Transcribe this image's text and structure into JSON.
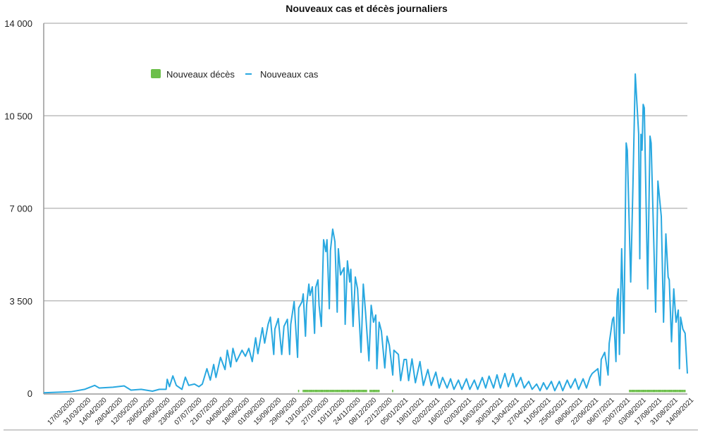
{
  "chart_data": {
    "type": "line",
    "title": "Nouveaux cas et décès journaliers",
    "xlabel": "",
    "ylabel": "",
    "x_unit": "days since 17/03/2020",
    "xlim": [
      -24,
      544
    ],
    "ylim": [
      0,
      14000
    ],
    "grid": true,
    "legend_position": "top-left",
    "yticks": [
      {
        "value": 0,
        "label": "0"
      },
      {
        "value": 3500,
        "label": "3 500"
      },
      {
        "value": 7000,
        "label": "7 000"
      },
      {
        "value": 10500,
        "label": "10 500"
      },
      {
        "value": 14000,
        "label": "14 000"
      }
    ],
    "xtick_step_days": 14,
    "xtick_labels": [
      "17/03/2020",
      "31/03/2020",
      "14/04/2020",
      "28/04/2020",
      "12/05/2020",
      "26/05/2020",
      "09/06/2020",
      "23/06/2020",
      "07/07/2020",
      "21/07/2020",
      "04/08/2020",
      "18/08/2020",
      "01/09/2020",
      "15/09/2020",
      "29/09/2020",
      "13/10/2020",
      "27/10/2020",
      "10/11/2020",
      "24/11/2020",
      "08/12/2020",
      "22/12/2020",
      "05/01/2021",
      "19/01/2021",
      "02/02/2021",
      "16/02/2021",
      "02/03/2021",
      "16/03/2021",
      "30/03/2021",
      "13/04/2021",
      "27/04/2021",
      "11/05/2021",
      "25/05/2021",
      "08/06/2021",
      "22/06/2021",
      "06/07/2021",
      "20/07/2021",
      "03/08/2021",
      "17/08/2021",
      "31/08/2021",
      "14/09/2021"
    ],
    "series": [
      {
        "name": "Nouveaux cas",
        "kind": "line",
        "color": "#29a8e0",
        "points": [
          [
            -24,
            20
          ],
          [
            0,
            60
          ],
          [
            12,
            150
          ],
          [
            21,
            300
          ],
          [
            25,
            200
          ],
          [
            37,
            230
          ],
          [
            47,
            280
          ],
          [
            53,
            120
          ],
          [
            62,
            150
          ],
          [
            72,
            80
          ],
          [
            78,
            150
          ],
          [
            84,
            150
          ],
          [
            85,
            530
          ],
          [
            87,
            250
          ],
          [
            90,
            660
          ],
          [
            93,
            300
          ],
          [
            98,
            150
          ],
          [
            101,
            610
          ],
          [
            104,
            300
          ],
          [
            109,
            350
          ],
          [
            113,
            250
          ],
          [
            116,
            350
          ],
          [
            120,
            930
          ],
          [
            123,
            500
          ],
          [
            126,
            1090
          ],
          [
            128,
            600
          ],
          [
            132,
            1360
          ],
          [
            136,
            900
          ],
          [
            138,
            1630
          ],
          [
            141,
            1000
          ],
          [
            143,
            1700
          ],
          [
            146,
            1200
          ],
          [
            151,
            1630
          ],
          [
            154,
            1400
          ],
          [
            157,
            1700
          ],
          [
            160,
            1200
          ],
          [
            163,
            2100
          ],
          [
            165,
            1500
          ],
          [
            169,
            2480
          ],
          [
            171,
            1900
          ],
          [
            174,
            2610
          ],
          [
            176,
            2880
          ],
          [
            179,
            1470
          ],
          [
            180,
            2430
          ],
          [
            183,
            2830
          ],
          [
            186,
            1470
          ],
          [
            188,
            2530
          ],
          [
            191,
            2800
          ],
          [
            193,
            1470
          ],
          [
            194,
            2610
          ],
          [
            197,
            3470
          ],
          [
            200,
            1360
          ],
          [
            201,
            3230
          ],
          [
            204,
            3470
          ],
          [
            205,
            3760
          ],
          [
            207,
            2160
          ],
          [
            208,
            3330
          ],
          [
            210,
            4130
          ],
          [
            211,
            3700
          ],
          [
            213,
            4030
          ],
          [
            215,
            2270
          ],
          [
            216,
            4000
          ],
          [
            218,
            4290
          ],
          [
            219,
            3330
          ],
          [
            221,
            2530
          ],
          [
            223,
            5810
          ],
          [
            225,
            5360
          ],
          [
            226,
            5810
          ],
          [
            228,
            3200
          ],
          [
            229,
            5400
          ],
          [
            231,
            6210
          ],
          [
            233,
            5730
          ],
          [
            235,
            3070
          ],
          [
            236,
            5470
          ],
          [
            238,
            4480
          ],
          [
            241,
            4750
          ],
          [
            242,
            2610
          ],
          [
            244,
            5010
          ],
          [
            246,
            4210
          ],
          [
            247,
            4690
          ],
          [
            249,
            2530
          ],
          [
            251,
            4400
          ],
          [
            253,
            3950
          ],
          [
            256,
            1550
          ],
          [
            258,
            4130
          ],
          [
            260,
            3070
          ],
          [
            263,
            1230
          ],
          [
            265,
            3330
          ],
          [
            267,
            2690
          ],
          [
            269,
            2960
          ],
          [
            270,
            930
          ],
          [
            272,
            2690
          ],
          [
            274,
            2350
          ],
          [
            277,
            960
          ],
          [
            279,
            2160
          ],
          [
            281,
            1810
          ],
          [
            284,
            690
          ],
          [
            285,
            1630
          ],
          [
            289,
            1470
          ],
          [
            291,
            480
          ],
          [
            294,
            1280
          ],
          [
            296,
            1280
          ],
          [
            298,
            480
          ],
          [
            301,
            1300
          ],
          [
            304,
            400
          ],
          [
            308,
            1200
          ],
          [
            311,
            300
          ],
          [
            315,
            900
          ],
          [
            318,
            300
          ],
          [
            322,
            800
          ],
          [
            325,
            200
          ],
          [
            328,
            600
          ],
          [
            332,
            200
          ],
          [
            335,
            550
          ],
          [
            338,
            150
          ],
          [
            342,
            500
          ],
          [
            345,
            150
          ],
          [
            349,
            550
          ],
          [
            352,
            150
          ],
          [
            356,
            500
          ],
          [
            359,
            150
          ],
          [
            363,
            600
          ],
          [
            366,
            200
          ],
          [
            369,
            650
          ],
          [
            373,
            200
          ],
          [
            376,
            700
          ],
          [
            379,
            200
          ],
          [
            383,
            750
          ],
          [
            386,
            250
          ],
          [
            390,
            750
          ],
          [
            393,
            250
          ],
          [
            397,
            600
          ],
          [
            400,
            200
          ],
          [
            404,
            450
          ],
          [
            407,
            150
          ],
          [
            411,
            350
          ],
          [
            414,
            100
          ],
          [
            417,
            400
          ],
          [
            420,
            150
          ],
          [
            424,
            450
          ],
          [
            427,
            100
          ],
          [
            431,
            450
          ],
          [
            434,
            100
          ],
          [
            438,
            500
          ],
          [
            441,
            200
          ],
          [
            445,
            550
          ],
          [
            448,
            150
          ],
          [
            452,
            550
          ],
          [
            455,
            200
          ],
          [
            458,
            600
          ],
          [
            460,
            750
          ],
          [
            465,
            930
          ],
          [
            467,
            300
          ],
          [
            468,
            1280
          ],
          [
            471,
            1550
          ],
          [
            474,
            690
          ],
          [
            475,
            1890
          ],
          [
            478,
            2800
          ],
          [
            479,
            2880
          ],
          [
            481,
            1200
          ],
          [
            482,
            3600
          ],
          [
            483,
            3950
          ],
          [
            484,
            1470
          ],
          [
            486,
            5470
          ],
          [
            488,
            2270
          ],
          [
            490,
            9470
          ],
          [
            491,
            9200
          ],
          [
            494,
            4210
          ],
          [
            496,
            7870
          ],
          [
            498,
            12080
          ],
          [
            501,
            9810
          ],
          [
            502,
            5090
          ],
          [
            503,
            9800
          ],
          [
            504,
            9200
          ],
          [
            505,
            10930
          ],
          [
            506,
            10800
          ],
          [
            509,
            3950
          ],
          [
            511,
            9730
          ],
          [
            512,
            9470
          ],
          [
            516,
            3070
          ],
          [
            518,
            8030
          ],
          [
            521,
            6690
          ],
          [
            523,
            2690
          ],
          [
            525,
            6030
          ],
          [
            527,
            4400
          ],
          [
            528,
            4290
          ],
          [
            530,
            1950
          ],
          [
            532,
            3950
          ],
          [
            534,
            2690
          ],
          [
            536,
            3150
          ],
          [
            537,
            930
          ],
          [
            538,
            2880
          ],
          [
            540,
            2430
          ],
          [
            542,
            2270
          ],
          [
            544,
            750
          ]
        ]
      },
      {
        "name": "Nouveaux décès",
        "kind": "bar",
        "color": "#6cbf4a",
        "segments": [
          {
            "from": 201,
            "to": 201,
            "value": 100
          },
          {
            "from": 205,
            "to": 261,
            "value": 100
          },
          {
            "from": 264,
            "to": 272,
            "value": 100
          },
          {
            "from": 284,
            "to": 284,
            "value": 100
          },
          {
            "from": 493,
            "to": 542,
            "value": 100
          }
        ]
      }
    ],
    "legend": [
      {
        "label": "Nouveaux décès",
        "symbol": "square",
        "color": "#6cbf4a"
      },
      {
        "label": "Nouveaux cas",
        "symbol": "line",
        "color": "#29a8e0"
      }
    ]
  }
}
